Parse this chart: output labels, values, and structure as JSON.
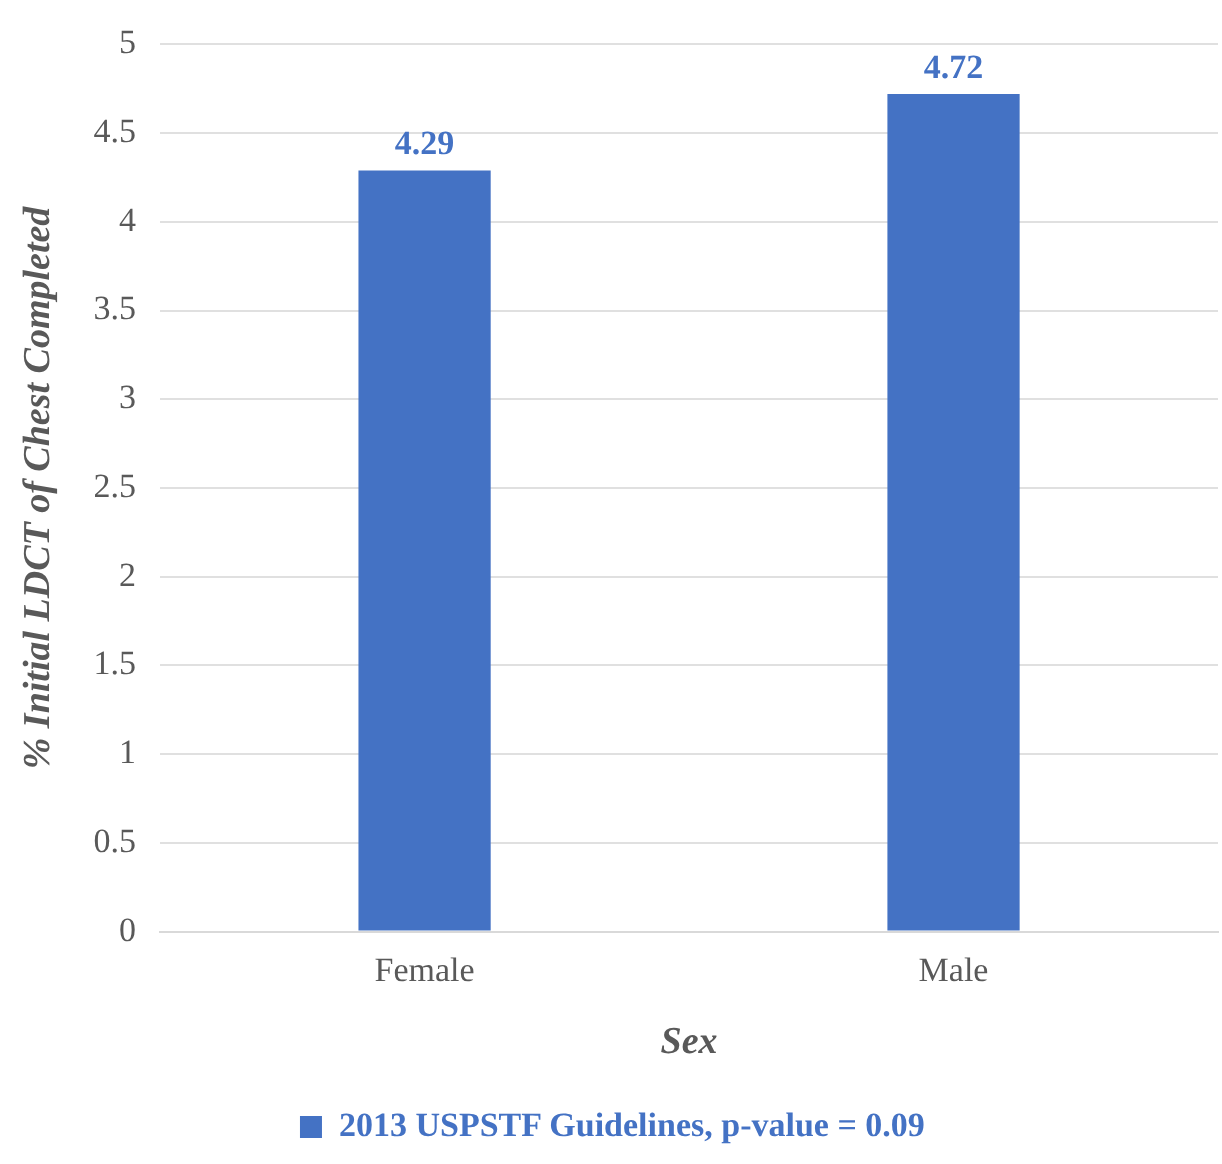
{
  "chart_data": {
    "type": "bar",
    "xlabel": "Sex",
    "ylabel": "% Initial LDCT of Chest Completed",
    "categories": [
      "Female",
      "Male"
    ],
    "series": [
      {
        "name": "2013 USPSTF Guidelines, p-value = 0.09",
        "color": "#4472c4",
        "values": [
          4.29,
          4.72
        ]
      }
    ],
    "ylim": [
      0,
      5
    ],
    "yticks": [
      0,
      0.5,
      1,
      1.5,
      2,
      2.5,
      3,
      3.5,
      4,
      4.5,
      5
    ],
    "grid": "y",
    "legend": "bottom",
    "data_labels": true
  }
}
